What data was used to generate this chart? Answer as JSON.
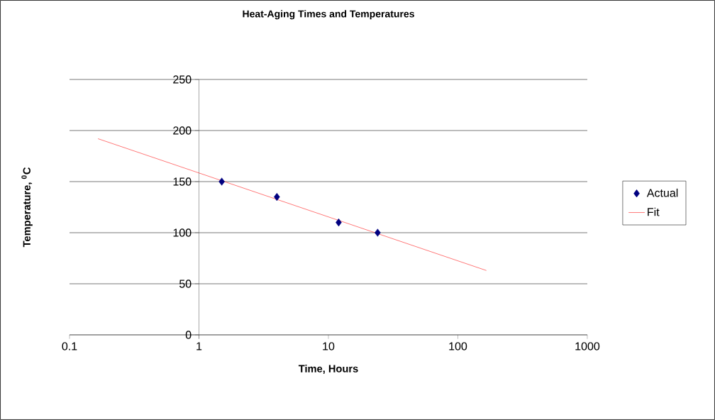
{
  "chart_data": {
    "type": "scatter",
    "title": "Heat-Aging Times and Temperatures",
    "xlabel": "Time, Hours",
    "ylabel": "Temperature,   $^{0}$C",
    "log": "x",
    "series": [
      {
        "name": "Actual",
        "color": "#000080",
        "marker": "diamond",
        "x": [
          1.5,
          4,
          12,
          24
        ],
        "values": [
          150,
          135,
          110,
          100
        ]
      },
      {
        "name": "Fit",
        "type": "line",
        "color": "#ff0000",
        "marker": "none",
        "line_style": "solid",
        "x": [
          0.166,
          166
        ],
        "values": [
          192,
          63
        ]
      }
    ],
    "xlim": [
      0.1,
      1000
    ],
    "xticks": [
      0.1,
      1,
      10,
      100,
      1000
    ],
    "ylim": [
      0,
      250
    ],
    "yticks": [
      0,
      50,
      100,
      150,
      200,
      250
    ],
    "grid": "y",
    "legend": "right"
  }
}
